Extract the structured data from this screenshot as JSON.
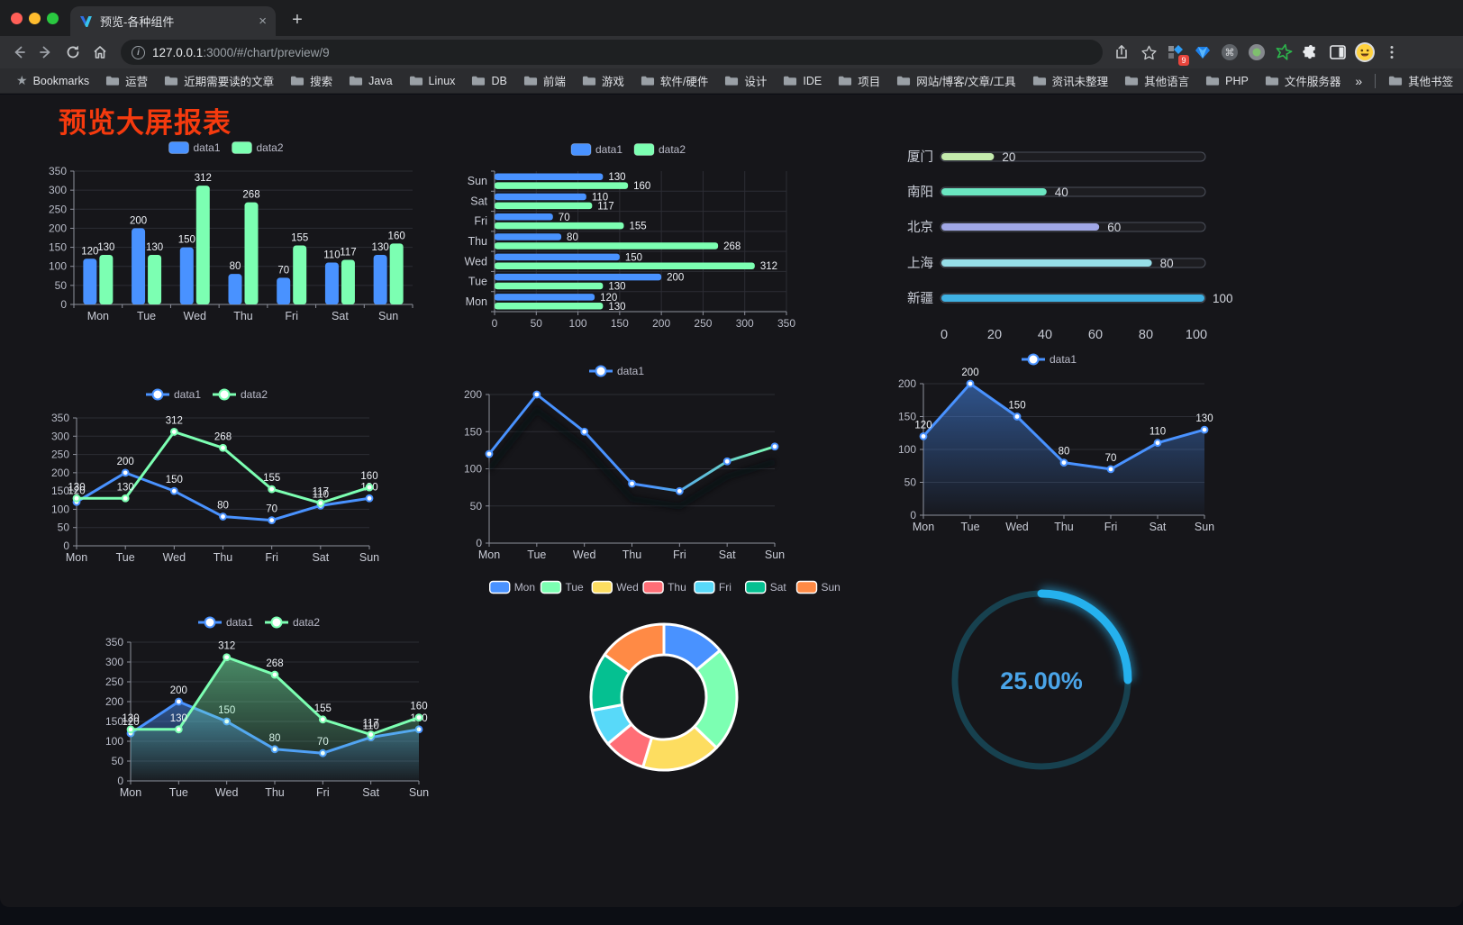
{
  "browser": {
    "tab_title": "预览-各种组件",
    "close_glyph": "×",
    "newtab_glyph": "+",
    "url_host": "127.0.0.1",
    "url_rest": ":3000/#/chart/preview/9",
    "extension_badge": "9",
    "bookmarks_label": "Bookmarks",
    "bookmarks": [
      "运营",
      "近期需要读的文章",
      "搜索",
      "Java",
      "Linux",
      "DB",
      "前端",
      "游戏",
      "软件/硬件",
      "设计",
      "IDE",
      "项目",
      "网站/博客/文章/工具",
      "资讯未整理",
      "其他语言",
      "PHP",
      "文件服务器"
    ],
    "bookmarks_overflow": "»",
    "other_bookmarks": "其他书签"
  },
  "page": {
    "title": "预览大屏报表",
    "title_color": "#f53a0e"
  },
  "theme": {
    "axis_text": "#b9bcc8",
    "category_text": "#c9ccd6",
    "grid_line": "#2c2d34",
    "axis_line": "#8e919c",
    "value_label": "#edf0f5",
    "legend_text": "#b9bac8"
  },
  "chart_data": [
    {
      "id": "bar-vertical",
      "type": "bar",
      "legend_position": "top",
      "grid": true,
      "value_labels": true,
      "categories": [
        "Mon",
        "Tue",
        "Wed",
        "Thu",
        "Fri",
        "Sat",
        "Sun"
      ],
      "series": [
        {
          "name": "data1",
          "color": "#4992ff",
          "values": [
            120,
            200,
            150,
            80,
            70,
            110,
            130
          ]
        },
        {
          "name": "data2",
          "color": "#7cffb2",
          "values": [
            130,
            130,
            312,
            268,
            155,
            117,
            160
          ]
        }
      ],
      "ylim": [
        0,
        350
      ],
      "ytick_step": 50
    },
    {
      "id": "bar-horizontal",
      "type": "bar",
      "orientation": "horizontal",
      "legend_position": "top",
      "grid": true,
      "value_labels": true,
      "categories": [
        "Mon",
        "Tue",
        "Wed",
        "Thu",
        "Fri",
        "Sat",
        "Sun"
      ],
      "series": [
        {
          "name": "data1",
          "color": "#4992ff",
          "values": [
            120,
            200,
            150,
            80,
            70,
            110,
            130
          ]
        },
        {
          "name": "data2",
          "color": "#7cffb2",
          "values": [
            130,
            130,
            312,
            268,
            155,
            117,
            160
          ]
        }
      ],
      "xlim": [
        0,
        350
      ],
      "xtick_step": 50
    },
    {
      "id": "progress",
      "type": "bar",
      "variant": "progress",
      "max": 100,
      "xticks": [
        0,
        20,
        40,
        60,
        80,
        100
      ],
      "items": [
        {
          "label": "厦门",
          "value": 20,
          "color": "#c4ebad"
        },
        {
          "label": "南阳",
          "value": 40,
          "color": "#6be6c1"
        },
        {
          "label": "北京",
          "value": 60,
          "color": "#a0a7e6"
        },
        {
          "label": "上海",
          "value": 80,
          "color": "#96dee8"
        },
        {
          "label": "新疆",
          "value": 100,
          "color": "#3fb1e3"
        }
      ]
    },
    {
      "id": "line-two",
      "type": "line",
      "legend_position": "top",
      "grid": true,
      "value_labels": true,
      "categories": [
        "Mon",
        "Tue",
        "Wed",
        "Thu",
        "Fri",
        "Sat",
        "Sun"
      ],
      "series": [
        {
          "name": "data1",
          "color": "#4992ff",
          "values": [
            120,
            200,
            150,
            80,
            70,
            110,
            130
          ]
        },
        {
          "name": "data2",
          "color": "#7cffb2",
          "values": [
            130,
            130,
            312,
            268,
            155,
            117,
            160
          ]
        }
      ],
      "ylim": [
        0,
        350
      ],
      "ytick_step": 50
    },
    {
      "id": "line-gradient",
      "type": "line",
      "legend_position": "top",
      "grid": true,
      "value_labels": false,
      "shadow": true,
      "categories": [
        "Mon",
        "Tue",
        "Wed",
        "Thu",
        "Fri",
        "Sat",
        "Sun"
      ],
      "series": [
        {
          "name": "data1",
          "color": "#4992ff",
          "gradient": [
            "#4992ff",
            "#7cffb2"
          ],
          "values": [
            120,
            200,
            150,
            80,
            70,
            110,
            130
          ]
        }
      ],
      "ylim": [
        0,
        200
      ],
      "ytick_step": 50
    },
    {
      "id": "line-area",
      "type": "area",
      "legend_position": "top",
      "grid": true,
      "value_labels": true,
      "categories": [
        "Mon",
        "Tue",
        "Wed",
        "Thu",
        "Fri",
        "Sat",
        "Sun"
      ],
      "series": [
        {
          "name": "data1",
          "color": "#4992ff",
          "area": true,
          "values": [
            120,
            200,
            150,
            80,
            70,
            110,
            130
          ]
        }
      ],
      "ylim": [
        0,
        200
      ],
      "ytick_step": 50
    },
    {
      "id": "area-two",
      "type": "area",
      "legend_position": "top",
      "grid": true,
      "value_labels": true,
      "categories": [
        "Mon",
        "Tue",
        "Wed",
        "Thu",
        "Fri",
        "Sat",
        "Sun"
      ],
      "series": [
        {
          "name": "data1",
          "color": "#4992ff",
          "area": true,
          "values": [
            120,
            200,
            150,
            80,
            70,
            110,
            130
          ]
        },
        {
          "name": "data2",
          "color": "#7cffb2",
          "area": true,
          "values": [
            130,
            130,
            312,
            268,
            155,
            117,
            160
          ]
        }
      ],
      "ylim": [
        0,
        350
      ],
      "ytick_step": 50
    },
    {
      "id": "donut",
      "type": "pie",
      "legend_position": "top",
      "inner_radius_ratio": 0.58,
      "items": [
        {
          "label": "Mon",
          "value": 120,
          "color": "#4992ff"
        },
        {
          "label": "Tue",
          "value": 200,
          "color": "#7cffb2"
        },
        {
          "label": "Wed",
          "value": 150,
          "color": "#fddd60"
        },
        {
          "label": "Thu",
          "value": 80,
          "color": "#ff6e76"
        },
        {
          "label": "Fri",
          "value": 70,
          "color": "#58d9f9"
        },
        {
          "label": "Sat",
          "value": 110,
          "color": "#05c091"
        },
        {
          "label": "Sun",
          "value": 130,
          "color": "#ff8a45"
        }
      ]
    },
    {
      "id": "gauge",
      "type": "gauge",
      "value": 25,
      "max": 100,
      "label": "25.00%",
      "arc_color": "#25b1ee",
      "track_color": "#17414f",
      "label_color": "#4aa4e8"
    }
  ]
}
